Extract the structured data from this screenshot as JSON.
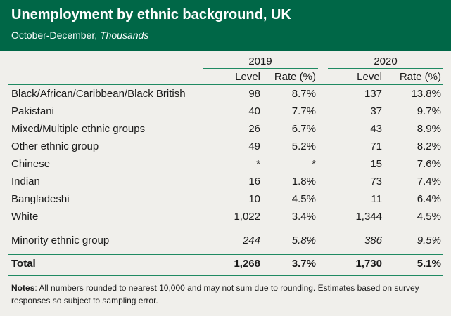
{
  "header": {
    "title": "Unemployment by ethnic background, UK",
    "subtitle_period": "October-December,",
    "subtitle_unit": "Thousands"
  },
  "colors": {
    "header_bg": "#006747",
    "rule": "#1f8a62",
    "background": "#f0efeb"
  },
  "chart_data": {
    "type": "table",
    "title": "Unemployment by ethnic background, UK",
    "subtitle": "October-December, Thousands",
    "column_groups": [
      "2019",
      "2020"
    ],
    "columns": [
      "Level",
      "Rate (%)",
      "Level",
      "Rate (%)"
    ],
    "rows": [
      {
        "label": "Black/African/Caribbean/Black British",
        "values": [
          "98",
          "8.7%",
          "137",
          "13.8%"
        ]
      },
      {
        "label": "Pakistani",
        "values": [
          "40",
          "7.7%",
          "37",
          "9.7%"
        ]
      },
      {
        "label": "Mixed/Multiple ethnic groups",
        "values": [
          "26",
          "6.7%",
          "43",
          "8.9%"
        ]
      },
      {
        "label": "Other ethnic group",
        "values": [
          "49",
          "5.2%",
          "71",
          "8.2%"
        ]
      },
      {
        "label": "Chinese",
        "values": [
          "*",
          "*",
          "15",
          "7.6%"
        ]
      },
      {
        "label": "Indian",
        "values": [
          "16",
          "1.8%",
          "73",
          "7.4%"
        ]
      },
      {
        "label": "Bangladeshi",
        "values": [
          "10",
          "4.5%",
          "11",
          "6.4%"
        ]
      },
      {
        "label": "White",
        "values": [
          "1,022",
          "3.4%",
          "1,344",
          "4.5%"
        ]
      }
    ],
    "minority": {
      "label": "Minority ethnic group",
      "values": [
        "244",
        "5.8%",
        "386",
        "9.5%"
      ]
    },
    "total": {
      "label": "Total",
      "values": [
        "1,268",
        "3.7%",
        "1,730",
        "5.1%"
      ]
    }
  },
  "notes": {
    "label": "Notes",
    "text": ": All numbers rounded to nearest 10,000 and may not sum due to rounding. Estimates based on survey responses so subject to sampling error."
  }
}
